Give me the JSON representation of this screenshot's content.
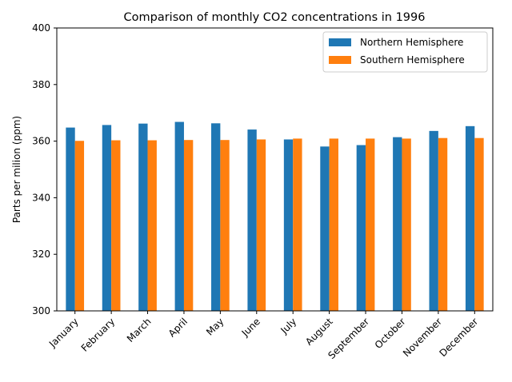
{
  "chart_data": {
    "type": "bar",
    "title": "Comparison of monthly CO2 concentrations in 1996",
    "xlabel": "",
    "ylabel": "Parts per milion (ppm)",
    "ylim": [
      300,
      400
    ],
    "yticks": [
      300,
      320,
      340,
      360,
      380,
      400
    ],
    "categories": [
      "January",
      "February",
      "March",
      "April",
      "May",
      "June",
      "July",
      "August",
      "September",
      "October",
      "November",
      "December"
    ],
    "series": [
      {
        "name": "Northern Hemisphere",
        "color": "#1f77b4",
        "values": [
          364.8,
          365.7,
          366.2,
          366.8,
          366.3,
          364.1,
          360.6,
          358.1,
          358.6,
          361.4,
          363.6,
          365.3
        ]
      },
      {
        "name": "Southern Hemisphere",
        "color": "#ff7f0e",
        "values": [
          360.1,
          360.3,
          360.3,
          360.4,
          360.4,
          360.6,
          360.9,
          360.9,
          360.9,
          360.9,
          361.1,
          361.1
        ]
      }
    ],
    "legend_position": "top-right",
    "grid": false
  }
}
